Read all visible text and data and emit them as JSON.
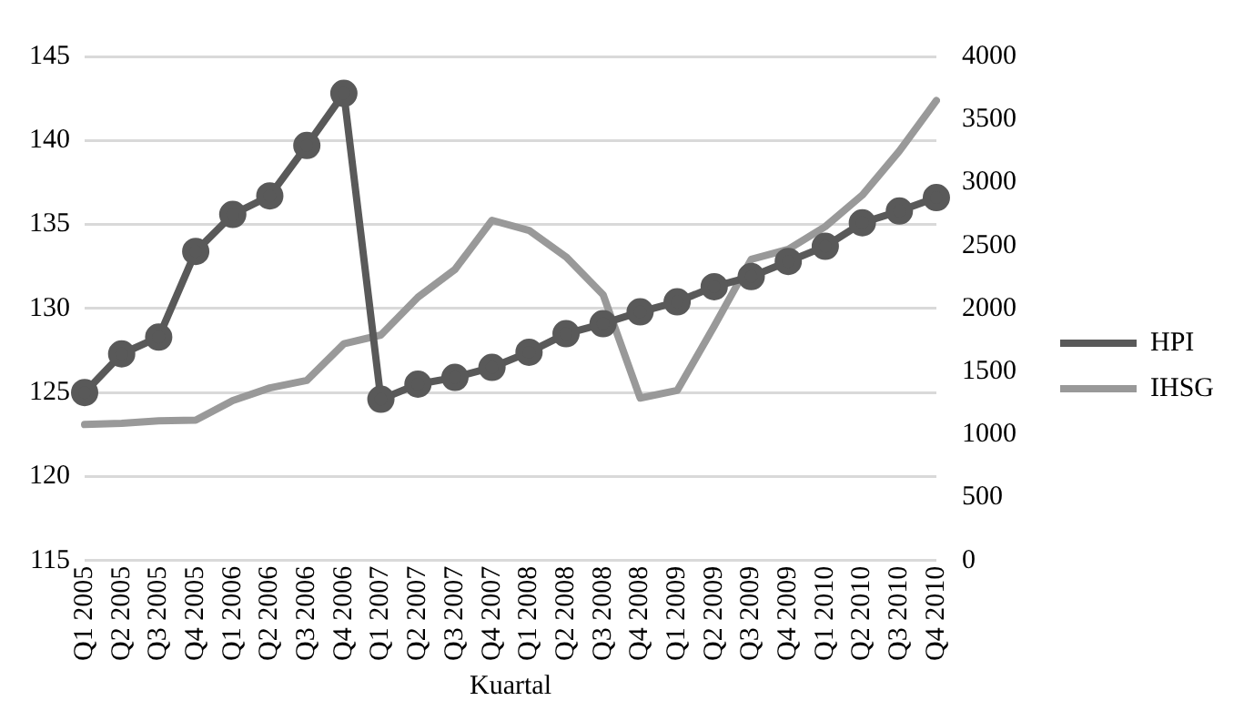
{
  "chart_data": {
    "type": "line",
    "xlabel": "Kuartal",
    "categories": [
      "Q1 2005",
      "Q2 2005",
      "Q3 2005",
      "Q4 2005",
      "Q1 2006",
      "Q2 2006",
      "Q3 2006",
      "Q4 2006",
      "Q1 2007",
      "Q2 2007",
      "Q3 2007",
      "Q4 2007",
      "Q1 2008",
      "Q2 2008",
      "Q3 2008",
      "Q4 2008",
      "Q1 2009",
      "Q2 2009",
      "Q3 2009",
      "Q4 2009",
      "Q1 2010",
      "Q2 2010",
      "Q3 2010",
      "Q4 2010"
    ],
    "series": [
      {
        "name": "HPI",
        "color": "#595959",
        "marker": "circle",
        "values": [
          125,
          127.3,
          128.3,
          133.4,
          135.6,
          136.7,
          139.7,
          142.8,
          124.6,
          125.5,
          125.9,
          126.5,
          127.4,
          128.5,
          129.1,
          129.8,
          130.4,
          131.3,
          131.9,
          132.8,
          133.7,
          135.1,
          135.8,
          136.6
        ]
      },
      {
        "name": "IHSG",
        "color": "#999999",
        "axis": "y2",
        "marker": "none",
        "values": [
          1080,
          1090,
          1110,
          1115,
          1270,
          1370,
          1430,
          1720,
          1790,
          2090,
          2310,
          2700,
          2620,
          2410,
          2110,
          1290,
          1350,
          1860,
          2390,
          2470,
          2650,
          2900,
          3250,
          3650
        ]
      }
    ],
    "ylim": [
      115,
      145
    ],
    "yticks": [
      115,
      120,
      125,
      130,
      135,
      140,
      145
    ],
    "y2lim": [
      0,
      4000
    ],
    "y2ticks": [
      0,
      500,
      1000,
      1500,
      2000,
      2500,
      3000,
      3500,
      4000
    ],
    "grid": "y",
    "legend": "right"
  }
}
